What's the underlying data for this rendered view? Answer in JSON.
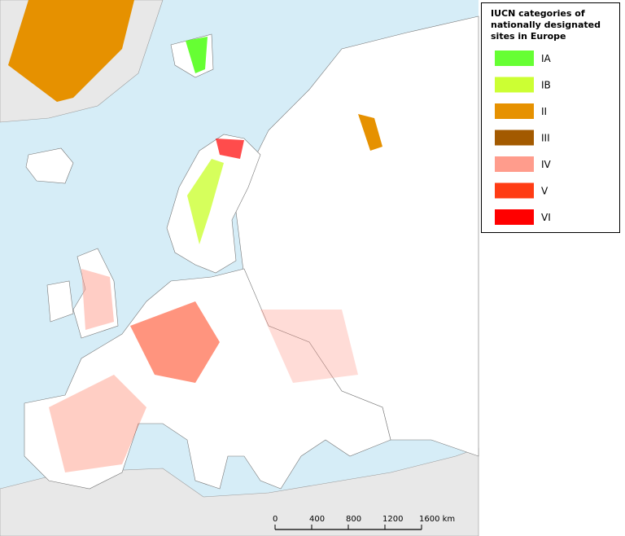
{
  "legend": {
    "title": [
      "IUCN categories of",
      "nationally designated",
      "sites in Europe"
    ],
    "items": [
      {
        "label": "IA",
        "color": "#66ff33"
      },
      {
        "label": "IB",
        "color": "#ccff33"
      },
      {
        "label": "II",
        "color": "#e69100"
      },
      {
        "label": "III",
        "color": "#a35a00"
      },
      {
        "label": "IV",
        "color": "#ff9c8c"
      },
      {
        "label": "V",
        "color": "#ff3c14"
      },
      {
        "label": "VI",
        "color": "#ff0000"
      }
    ]
  },
  "scale_bar": {
    "ticks": [
      0,
      400,
      800,
      {
        "value": 1200,
        "label": "1200"
      },
      {
        "value": 1600,
        "label": "1600 km"
      }
    ]
  }
}
